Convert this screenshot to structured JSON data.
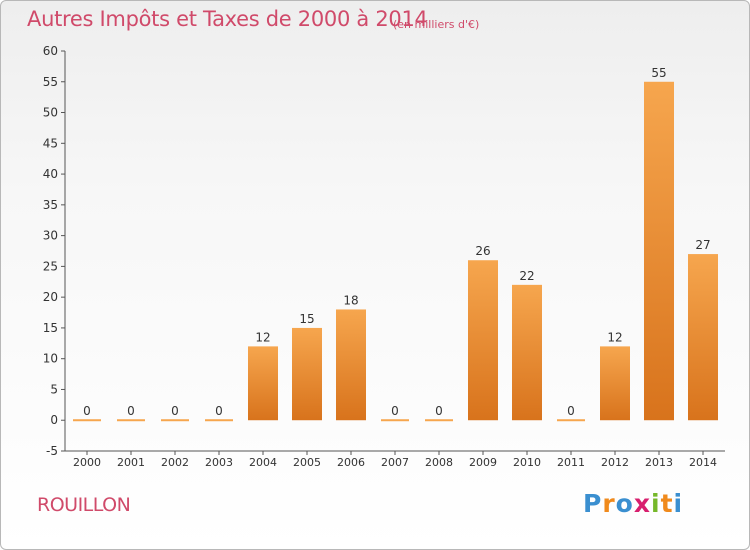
{
  "header": {
    "title": "Autres Impôts et Taxes de 2000 à 2014",
    "unit": "(en milliers d'€)"
  },
  "footer": {
    "commune": "ROUILLON",
    "logo_letters": [
      "P",
      "r",
      "o",
      "x",
      "i",
      "t",
      "i"
    ],
    "logo_colors": [
      "#3a8fd0",
      "#f08a1c",
      "#3a8fd0",
      "#d81f6e",
      "#76b82a",
      "#f08a1c",
      "#3a8fd0"
    ]
  },
  "colors": {
    "title": "#d04a6a",
    "bar_light": "#f6a64e",
    "bar_dark": "#d8731c",
    "axis": "#555555",
    "grid": "#c8c8c8"
  },
  "chart_data": {
    "type": "bar",
    "title": "Autres Impôts et Taxes de 2000 à 2014",
    "subtitle": "(en milliers d'€)",
    "categories": [
      "2000",
      "2001",
      "2002",
      "2003",
      "2004",
      "2005",
      "2006",
      "2007",
      "2008",
      "2009",
      "2010",
      "2011",
      "2012",
      "2013",
      "2014"
    ],
    "values": [
      0,
      0,
      0,
      0,
      12,
      15,
      18,
      0,
      0,
      26,
      22,
      0,
      12,
      55,
      27
    ],
    "ylim": [
      -5,
      60
    ],
    "yticks": [
      -5,
      0,
      5,
      10,
      15,
      20,
      25,
      30,
      35,
      40,
      45,
      50,
      55,
      60
    ],
    "grid": false,
    "legend": "none"
  }
}
